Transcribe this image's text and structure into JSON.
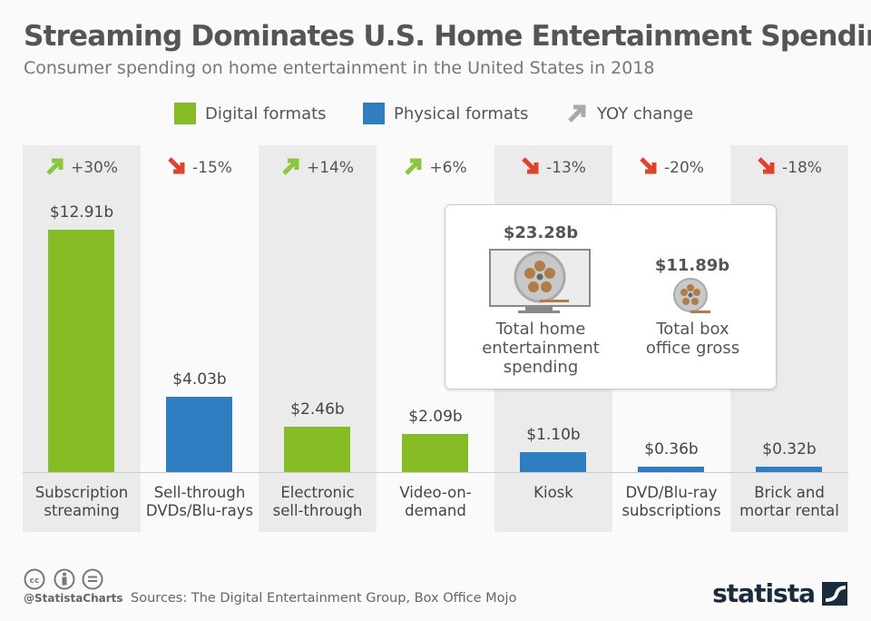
{
  "title": "Streaming Dominates U.S. Home Entertainment Spending",
  "subtitle": "Consumer spending on home entertainment in the United States in 2018",
  "legend": {
    "digital": "Digital formats",
    "physical": "Physical formats",
    "yoy": "YOY change"
  },
  "colors": {
    "digital": "#86bc25",
    "physical": "#2f7ec2",
    "up": "#8cc63f",
    "down": "#e0432b",
    "yoy_legend": "#aaaaaa"
  },
  "chart_data": {
    "type": "bar",
    "categories": [
      "Subscription streaming",
      "Sell-through DVDs/Blu-rays",
      "Electronic sell-through",
      "Video-on-demand",
      "Kiosk",
      "DVD/Blu-ray subscriptions",
      "Brick and mortar rental"
    ],
    "category_lines": [
      [
        "Subscription",
        "streaming"
      ],
      [
        "Sell-through",
        "DVDs/Blu-rays"
      ],
      [
        "Electronic",
        "sell-through"
      ],
      [
        "Video-on-",
        "demand"
      ],
      [
        "Kiosk"
      ],
      [
        "DVD/Blu-ray",
        "subscriptions"
      ],
      [
        "Brick and",
        "mortar rental"
      ]
    ],
    "values": [
      12.91,
      4.03,
      2.46,
      2.09,
      1.1,
      0.36,
      0.32
    ],
    "value_labels": [
      "$12.91b",
      "$4.03b",
      "$2.46b",
      "$2.09b",
      "$1.10b",
      "$0.36b",
      "$0.32b"
    ],
    "format": [
      "digital",
      "physical",
      "digital",
      "digital",
      "physical",
      "physical",
      "physical"
    ],
    "yoy": [
      "+30%",
      "-15%",
      "+14%",
      "+6%",
      "-13%",
      "-20%",
      "-18%"
    ],
    "yoy_direction": [
      "up",
      "down",
      "up",
      "up",
      "down",
      "down",
      "down"
    ],
    "unit": "billion U.S. dollars"
  },
  "callout": {
    "home_value": "$23.28b",
    "home_label": [
      "Total home",
      "entertainment",
      "spending"
    ],
    "box_value": "$11.89b",
    "box_label": [
      "Total box",
      "office gross"
    ]
  },
  "footer": {
    "handle": "@StatistaCharts",
    "sources": "Sources: The Digital Entertainment Group, Box Office Mojo",
    "logo": "statista"
  }
}
